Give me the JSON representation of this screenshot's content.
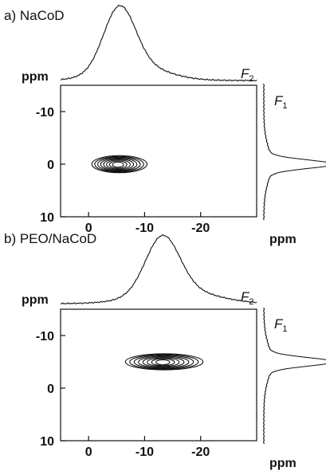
{
  "chart_data": [
    {
      "type": "contour",
      "panel_label": "a) NaCoD",
      "f2_axis": {
        "name": "F",
        "sub": "2",
        "unit": "ppm",
        "range": [
          5,
          -30
        ],
        "ticks": [
          0,
          -10,
          -20
        ]
      },
      "f1_axis": {
        "name": "F",
        "sub": "1",
        "unit": "ppm",
        "range": [
          -15,
          10
        ],
        "ticks": [
          -10,
          0,
          10
        ]
      },
      "peak": {
        "f2": -5.5,
        "f1": 0,
        "f2_width": 4.5,
        "f1_width": 1.4
      },
      "f2_projection": {
        "center": -5.5,
        "width": 2.8,
        "tail": 5.5
      },
      "f1_projection": {
        "center": 0,
        "width": 0.8
      },
      "contour_levels": 8,
      "tick_labels_x": [
        "0",
        "-10",
        "-20"
      ],
      "tick_labels_y": [
        "-10",
        "0",
        "10"
      ],
      "ppm_top": "ppm",
      "ppm_bottom": "ppm"
    },
    {
      "type": "contour",
      "panel_label": "b) PEO/NaCoD",
      "f2_axis": {
        "name": "F",
        "sub": "2",
        "unit": "ppm",
        "range": [
          5,
          -30
        ],
        "ticks": [
          0,
          -10,
          -20
        ]
      },
      "f1_axis": {
        "name": "F",
        "sub": "1",
        "unit": "ppm",
        "range": [
          -15,
          10
        ],
        "ticks": [
          -10,
          0,
          10
        ]
      },
      "peak": {
        "f2": -13.5,
        "f1": -5,
        "f2_width": 6.5,
        "f1_width": 1.3
      },
      "f2_projection": {
        "center": -13.2,
        "width": 3.0,
        "tail": 6.5
      },
      "f1_projection": {
        "center": -5,
        "width": 0.8
      },
      "contour_levels": 8,
      "tick_labels_x": [
        "0",
        "-10",
        "-20"
      ],
      "tick_labels_y": [
        "-10",
        "0",
        "10"
      ],
      "ppm_top": "ppm",
      "ppm_bottom": "ppm"
    }
  ]
}
